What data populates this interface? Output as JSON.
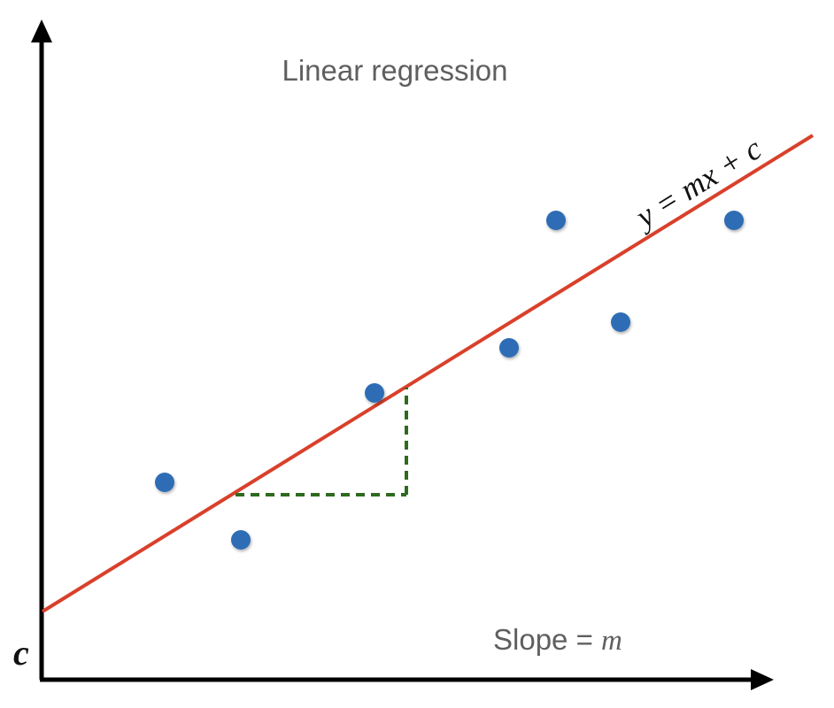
{
  "diagram": {
    "title": "Linear regression",
    "equation": "y = mx + c",
    "intercept_label": "c",
    "slope_label_prefix": "Slope = ",
    "slope_label_var": "m"
  },
  "colors": {
    "axes": "#000000",
    "regression_line": "#d9402b",
    "points": "#2f6db5",
    "slope_triangle": "#2e6b1e",
    "label_gray": "#5f5f5f"
  }
}
